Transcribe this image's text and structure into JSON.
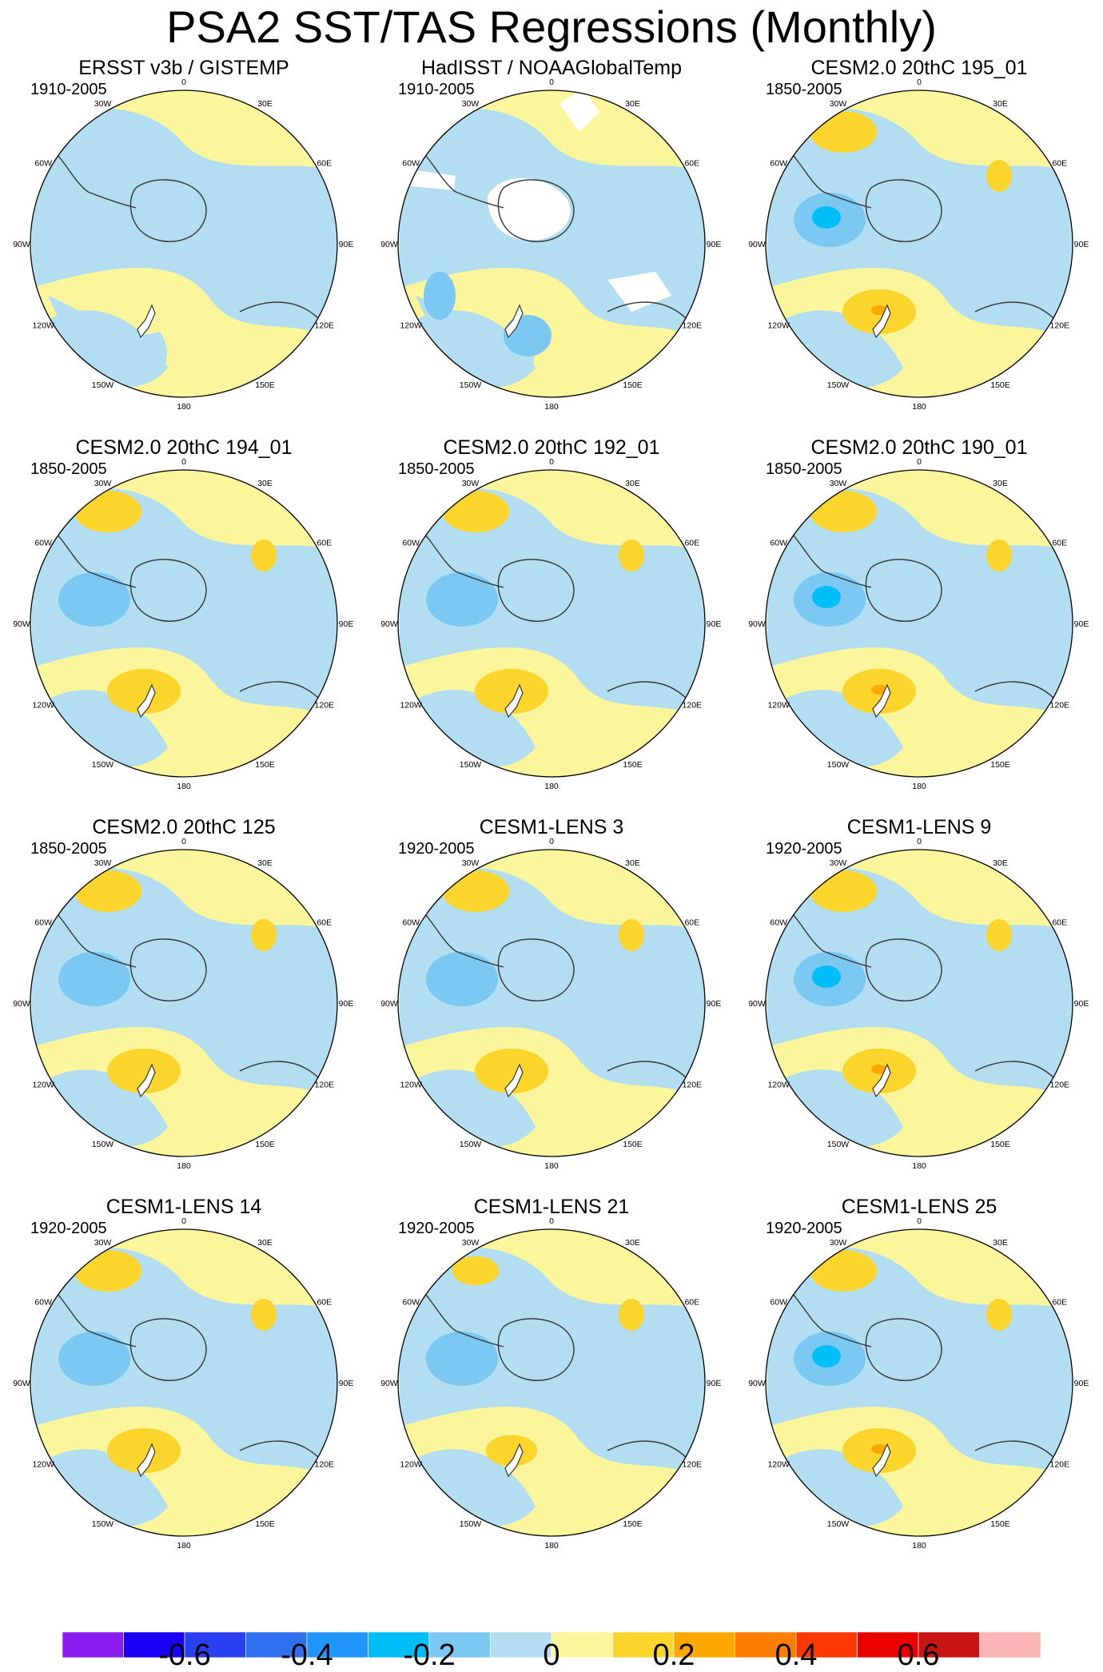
{
  "title": "PSA2 SST/TAS Regressions (Monthly)",
  "panels": [
    {
      "title": "ERSST v3b / GISTEMP",
      "period": "1910-2005",
      "pattern": "obs1"
    },
    {
      "title": "HadISST / NOAAGlobalTemp",
      "period": "1910-2005",
      "pattern": "obs2"
    },
    {
      "title": "CESM2.0 20thC 195_01",
      "period": "1850-2005",
      "pattern": "model_strong"
    },
    {
      "title": "CESM2.0 20thC 194_01",
      "period": "1850-2005",
      "pattern": "model"
    },
    {
      "title": "CESM2.0 20thC 192_01",
      "period": "1850-2005",
      "pattern": "model"
    },
    {
      "title": "CESM2.0 20thC 190_01",
      "period": "1850-2005",
      "pattern": "model_strong"
    },
    {
      "title": "CESM2.0 20thC 125",
      "period": "1850-2005",
      "pattern": "model"
    },
    {
      "title": "CESM1-LENS 3",
      "period": "1920-2005",
      "pattern": "model"
    },
    {
      "title": "CESM1-LENS 9",
      "period": "1920-2005",
      "pattern": "model_strong"
    },
    {
      "title": "CESM1-LENS 14",
      "period": "1920-2005",
      "pattern": "model"
    },
    {
      "title": "CESM1-LENS 21",
      "period": "1920-2005",
      "pattern": "model_weak"
    },
    {
      "title": "CESM1-LENS 25",
      "period": "1920-2005",
      "pattern": "model_strong"
    }
  ],
  "longitude_labels": [
    {
      "label": "0",
      "lon": 0
    },
    {
      "label": "30E",
      "lon": 30
    },
    {
      "label": "60E",
      "lon": 60
    },
    {
      "label": "90E",
      "lon": 90
    },
    {
      "label": "120E",
      "lon": 120
    },
    {
      "label": "150E",
      "lon": 150
    },
    {
      "label": "180",
      "lon": 180
    },
    {
      "label": "150W",
      "lon": -150
    },
    {
      "label": "120W",
      "lon": -120
    },
    {
      "label": "90W",
      "lon": -90
    },
    {
      "label": "60W",
      "lon": -60
    },
    {
      "label": "30W",
      "lon": -30
    }
  ],
  "colorbar": {
    "colors": [
      "#8a1cf0",
      "#1a00f5",
      "#2a3ff0",
      "#3070ee",
      "#2095fa",
      "#00bef8",
      "#7bc8f2",
      "#b3def2",
      "#fbf69c",
      "#fcd52c",
      "#fca800",
      "#fb7e00",
      "#fb3800",
      "#ea0000",
      "#c81414",
      "#fab4b4"
    ],
    "labels": [
      {
        "text": "-0.6",
        "boundary": 2
      },
      {
        "text": "-0.4",
        "boundary": 4
      },
      {
        "text": "-0.2",
        "boundary": 6
      },
      {
        "text": "0",
        "boundary": 8
      },
      {
        "text": "0.2",
        "boundary": 10
      },
      {
        "text": "0.4",
        "boundary": 12
      },
      {
        "text": "0.6",
        "boundary": 14
      }
    ]
  }
}
